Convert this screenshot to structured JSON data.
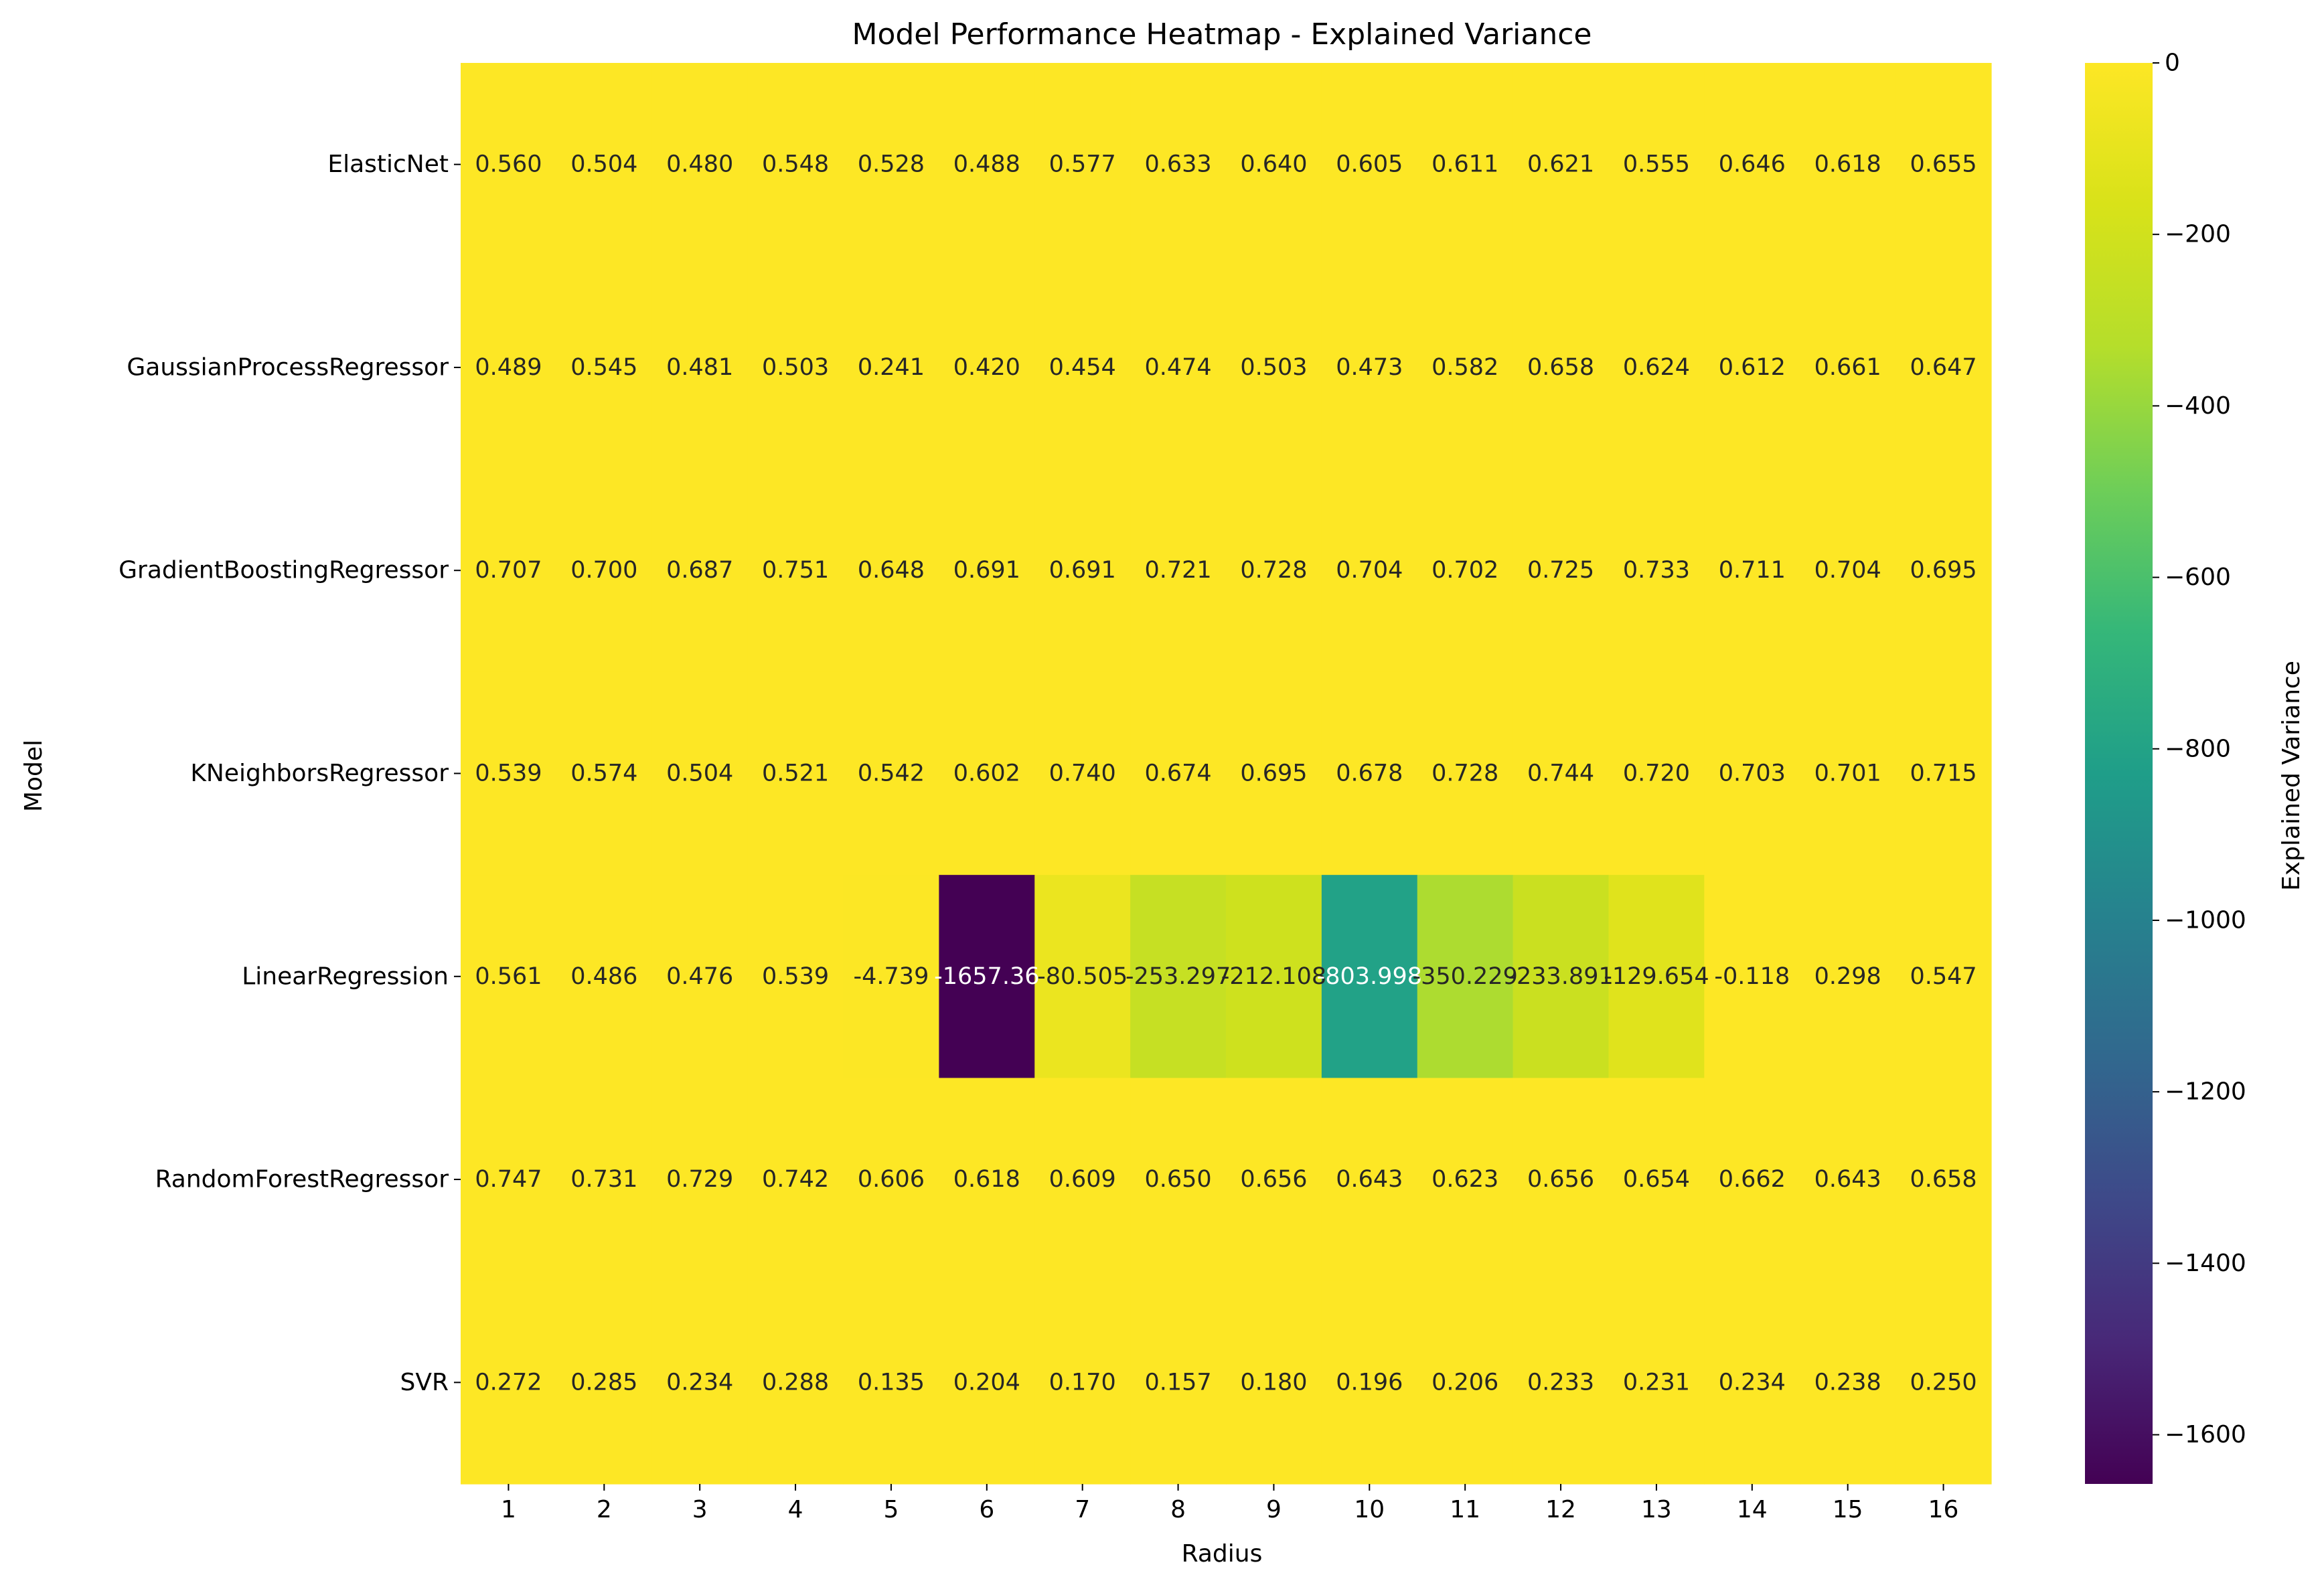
{
  "chart_data": {
    "type": "heatmap",
    "title": "Model Performance Heatmap - Explained Variance",
    "xlabel": "Radius",
    "ylabel": "Model",
    "x_categories": [
      "1",
      "2",
      "3",
      "4",
      "5",
      "6",
      "7",
      "8",
      "9",
      "10",
      "11",
      "12",
      "13",
      "14",
      "15",
      "16"
    ],
    "y_categories": [
      "ElasticNet",
      "GaussianProcessRegressor",
      "GradientBoostingRegressor",
      "KNeighborsRegressor",
      "LinearRegression",
      "RandomForestRegressor",
      "SVR"
    ],
    "values": [
      [
        0.56,
        0.504,
        0.48,
        0.548,
        0.528,
        0.488,
        0.577,
        0.633,
        0.64,
        0.605,
        0.611,
        0.621,
        0.555,
        0.646,
        0.618,
        0.655
      ],
      [
        0.489,
        0.545,
        0.481,
        0.503,
        0.241,
        0.42,
        0.454,
        0.474,
        0.503,
        0.473,
        0.582,
        0.658,
        0.624,
        0.612,
        0.661,
        0.647
      ],
      [
        0.707,
        0.7,
        0.687,
        0.751,
        0.648,
        0.691,
        0.691,
        0.721,
        0.728,
        0.704,
        0.702,
        0.725,
        0.733,
        0.711,
        0.704,
        0.695
      ],
      [
        0.539,
        0.574,
        0.504,
        0.521,
        0.542,
        0.602,
        0.74,
        0.674,
        0.695,
        0.678,
        0.728,
        0.744,
        0.72,
        0.703,
        0.701,
        0.715
      ],
      [
        0.561,
        0.486,
        0.476,
        0.539,
        -4.739,
        -1657.36,
        -80.505,
        -253.297,
        -212.108,
        -803.998,
        -350.229,
        -233.891,
        -129.654,
        -0.118,
        0.298,
        0.547
      ],
      [
        0.747,
        0.731,
        0.729,
        0.742,
        0.606,
        0.618,
        0.609,
        0.65,
        0.656,
        0.643,
        0.623,
        0.656,
        0.654,
        0.662,
        0.643,
        0.658
      ],
      [
        0.272,
        0.285,
        0.234,
        0.288,
        0.135,
        0.204,
        0.17,
        0.157,
        0.18,
        0.196,
        0.206,
        0.233,
        0.231,
        0.234,
        0.238,
        0.25
      ]
    ],
    "labels": [
      [
        "0.560",
        "0.504",
        "0.480",
        "0.548",
        "0.528",
        "0.488",
        "0.577",
        "0.633",
        "0.640",
        "0.605",
        "0.611",
        "0.621",
        "0.555",
        "0.646",
        "0.618",
        "0.655"
      ],
      [
        "0.489",
        "0.545",
        "0.481",
        "0.503",
        "0.241",
        "0.420",
        "0.454",
        "0.474",
        "0.503",
        "0.473",
        "0.582",
        "0.658",
        "0.624",
        "0.612",
        "0.661",
        "0.647"
      ],
      [
        "0.707",
        "0.700",
        "0.687",
        "0.751",
        "0.648",
        "0.691",
        "0.691",
        "0.721",
        "0.728",
        "0.704",
        "0.702",
        "0.725",
        "0.733",
        "0.711",
        "0.704",
        "0.695"
      ],
      [
        "0.539",
        "0.574",
        "0.504",
        "0.521",
        "0.542",
        "0.602",
        "0.740",
        "0.674",
        "0.695",
        "0.678",
        "0.728",
        "0.744",
        "0.720",
        "0.703",
        "0.701",
        "0.715"
      ],
      [
        "0.561",
        "0.486",
        "0.476",
        "0.539",
        "-4.739",
        "-1657.36",
        "-80.505",
        "-253.297",
        "-212.108",
        "-803.998",
        "-350.229",
        "-233.891",
        "-129.654",
        "-0.118",
        "0.298",
        "0.547"
      ],
      [
        "0.747",
        "0.731",
        "0.729",
        "0.742",
        "0.606",
        "0.618",
        "0.609",
        "0.650",
        "0.656",
        "0.643",
        "0.623",
        "0.656",
        "0.654",
        "0.662",
        "0.643",
        "0.658"
      ],
      [
        "0.272",
        "0.285",
        "0.234",
        "0.288",
        "0.135",
        "0.204",
        "0.170",
        "0.157",
        "0.180",
        "0.196",
        "0.206",
        "0.233",
        "0.231",
        "0.234",
        "0.238",
        "0.250"
      ]
    ],
    "colormap": "viridis",
    "colorbar": {
      "label": "Explained Variance",
      "range": [
        -1657.36,
        0
      ],
      "ticks": [
        0,
        -200,
        -400,
        -600,
        -800,
        -1000,
        -1200,
        -1400,
        -1600
      ],
      "tick_labels": [
        "0",
        "−200",
        "−400",
        "−600",
        "−800",
        "−1000",
        "−1200",
        "−1400",
        "−1600"
      ]
    }
  }
}
